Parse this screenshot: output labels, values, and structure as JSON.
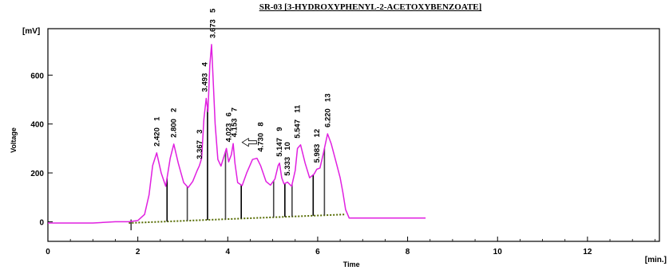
{
  "title": "SR-03 [3-HYDROXYPHENYL-2-ACETOXYBENZOATE]",
  "chart_data": {
    "type": "line",
    "title": "SR-03 [3-HYDROXYPHENYL-2-ACETOXYBENZOATE]",
    "xlabel": "Time",
    "ylabel": "Voltage",
    "y_unit": "[mV]",
    "x_unit": "[min.]",
    "xlim": [
      0,
      13.6
    ],
    "ylim": [
      -80,
      790
    ],
    "x_ticks": [
      0,
      2,
      4,
      6,
      8,
      10,
      12
    ],
    "y_ticks": [
      0,
      200,
      400,
      600
    ],
    "grid": false,
    "line_color": "#e020e0",
    "baseline_color": "#000000",
    "series": [
      {
        "name": "",
        "x": [
          0,
          0.5,
          1.0,
          1.5,
          1.8,
          2.0,
          2.15,
          2.25,
          2.33,
          2.42,
          2.52,
          2.62,
          2.72,
          2.8,
          2.9,
          3.02,
          3.12,
          3.22,
          3.32,
          3.37,
          3.42,
          3.47,
          3.52,
          3.56,
          3.6,
          3.64,
          3.68,
          3.72,
          3.78,
          3.85,
          3.92,
          3.97,
          4.02,
          4.08,
          4.12,
          4.16,
          4.22,
          4.32,
          4.42,
          4.55,
          4.65,
          4.73,
          4.85,
          4.95,
          5.05,
          5.12,
          5.15,
          5.2,
          5.25,
          5.33,
          5.42,
          5.5,
          5.55,
          5.62,
          5.72,
          5.82,
          5.92,
          5.98,
          6.05,
          6.12,
          6.22,
          6.3,
          6.4,
          6.5,
          6.56,
          6.62,
          6.7,
          7.0,
          7.5,
          8.0,
          8.4
        ],
        "y": [
          -5,
          -5,
          -5,
          0,
          0,
          5,
          30,
          110,
          230,
          282,
          200,
          145,
          260,
          318,
          240,
          160,
          140,
          165,
          210,
          230,
          260,
          420,
          505,
          450,
          640,
          725,
          560,
          400,
          255,
          228,
          270,
          300,
          245,
          275,
          320,
          240,
          160,
          148,
          200,
          255,
          260,
          230,
          165,
          150,
          175,
          230,
          240,
          180,
          155,
          162,
          145,
          210,
          300,
          315,
          240,
          180,
          195,
          215,
          220,
          275,
          360,
          320,
          250,
          180,
          120,
          50,
          15,
          15,
          15,
          15,
          15
        ]
      }
    ],
    "peaks": [
      {
        "id": "1",
        "rt": "2.420",
        "t": 2.42,
        "v": 282
      },
      {
        "id": "2",
        "rt": "2.800",
        "t": 2.8,
        "v": 318
      },
      {
        "id": "3",
        "rt": "3.367",
        "t": 3.37,
        "v": 230
      },
      {
        "id": "4",
        "rt": "3.493",
        "t": 3.49,
        "v": 505
      },
      {
        "id": "5",
        "rt": "3.673",
        "t": 3.67,
        "v": 725
      },
      {
        "id": "6",
        "rt": "4.023",
        "t": 4.02,
        "v": 300
      },
      {
        "id": "7",
        "rt": "4.153",
        "t": 4.15,
        "v": 320
      },
      {
        "id": "8",
        "rt": "4.730",
        "t": 4.73,
        "v": 260
      },
      {
        "id": "9",
        "rt": "5.147",
        "t": 5.15,
        "v": 240
      },
      {
        "id": "10",
        "rt": "5.333",
        "t": 5.33,
        "v": 162
      },
      {
        "id": "11",
        "rt": "5.547",
        "t": 5.55,
        "v": 315
      },
      {
        "id": "12",
        "rt": "5.983",
        "t": 5.98,
        "v": 215
      },
      {
        "id": "13",
        "rt": "6.220",
        "t": 6.22,
        "v": 360
      }
    ],
    "integration_baseline": {
      "x": [
        1.8,
        6.6
      ],
      "y": [
        -5,
        30
      ]
    },
    "marker_lines_x": [
      1.85,
      2.65,
      3.1,
      3.55,
      3.95,
      4.3,
      5.02,
      5.27,
      5.43,
      5.9,
      6.15
    ]
  }
}
